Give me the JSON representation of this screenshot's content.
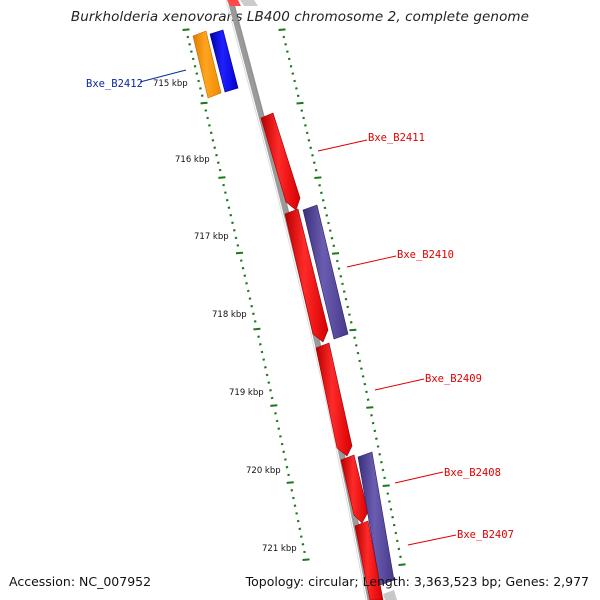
{
  "title": "Burkholderia xenovorans LB400 chromosome 2, complete genome",
  "footer": {
    "accession": "Accession: NC_007952",
    "summary": "Topology: circular; Length: 3,363,523 bp; Genes: 2,977"
  },
  "scale": {
    "unit": "kbp",
    "ticks": [
      {
        "label": "715 kbp",
        "kbp": 715
      },
      {
        "label": "716 kbp",
        "kbp": 716
      },
      {
        "label": "717 kbp",
        "kbp": 717
      },
      {
        "label": "718 kbp",
        "kbp": 718
      },
      {
        "label": "719 kbp",
        "kbp": 719
      },
      {
        "label": "720 kbp",
        "kbp": 720
      },
      {
        "label": "721 kbp",
        "kbp": 721
      }
    ]
  },
  "genes": [
    {
      "name": "Bxe_B2412",
      "strand": "-",
      "label_color": "#0a2aa0",
      "fill": "#0000ff"
    },
    {
      "name": "Bxe_B2411",
      "strand": "+",
      "label_color": "#e00000",
      "fill": "#ff0000"
    },
    {
      "name": "Bxe_B2410",
      "strand": "+",
      "label_color": "#e00000",
      "fill": "#ff0000"
    },
    {
      "name": "Bxe_B2409",
      "strand": "+",
      "label_color": "#e00000",
      "fill": "#ff0000"
    },
    {
      "name": "Bxe_B2408",
      "strand": "+",
      "label_color": "#e00000",
      "fill": "#ff0000"
    },
    {
      "name": "Bxe_B2407",
      "strand": "+",
      "label_color": "#e00000",
      "fill": "#ff0000"
    }
  ],
  "colors": {
    "forward_cds": "#ff0000",
    "reverse_cds": "#0000ff",
    "forward_orf": "#554499",
    "reverse_orf": "#ff9900",
    "backbone": "#888888",
    "ticks": "#1a7a1a"
  }
}
